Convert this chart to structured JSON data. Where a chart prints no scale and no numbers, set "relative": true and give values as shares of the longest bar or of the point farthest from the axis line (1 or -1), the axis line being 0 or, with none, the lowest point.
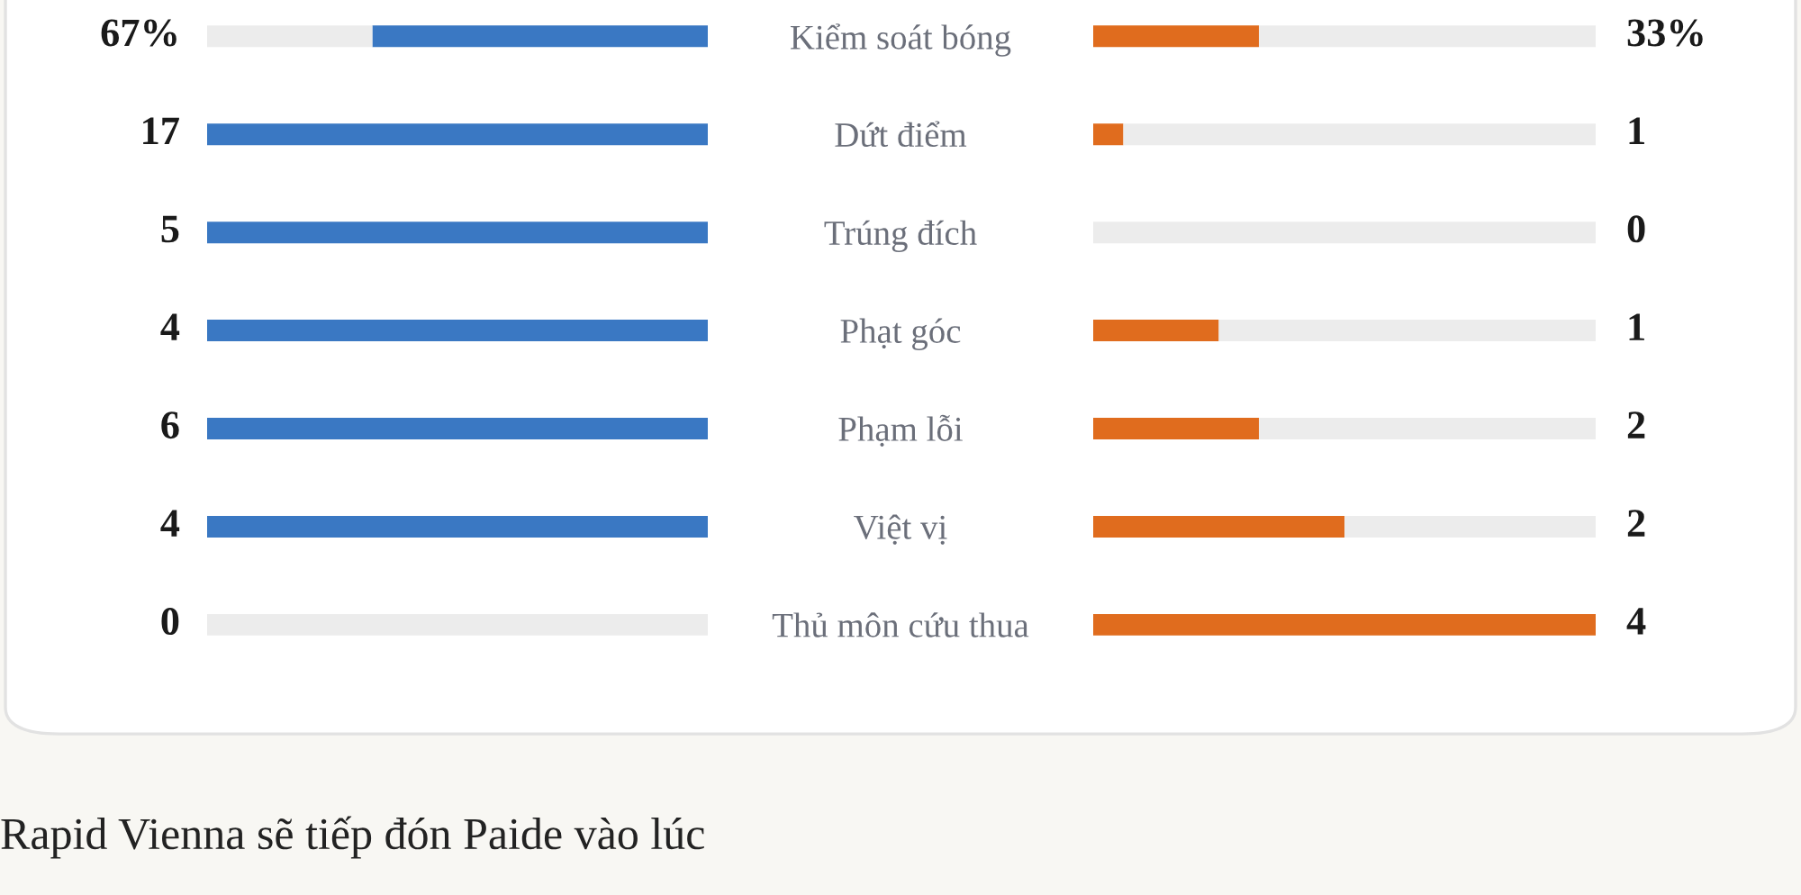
{
  "chart_data": [
    {
      "type": "bar",
      "orientation": "horizontal",
      "stacked": true,
      "relative": true,
      "tick_labels": false,
      "categories": [
        null,
        null,
        null,
        null,
        null,
        null,
        null
      ],
      "series": [
        {
          "color": "#3a78c3",
          "values": [
            -0.67,
            -1,
            -1,
            -1,
            -1,
            -1,
            0
          ]
        },
        {
          "color": "#ececec",
          "values": [
            -0.33,
            0,
            0,
            0,
            0,
            0,
            -1
          ]
        }
      ],
      "annotations": [
        "67%",
        "17",
        "5",
        "4",
        "6",
        "4",
        "0"
      ]
    },
    {
      "type": "bar",
      "orientation": "horizontal",
      "stacked": true,
      "relative": true,
      "tick_labels": "y",
      "categories": [
        "Kiểm soát bóng",
        "Dứt điểm",
        "Trúng đích",
        "Phạt góc",
        "Phạm lỗi",
        "Việt vị",
        "Thủ môn cứu thua"
      ],
      "series": [
        {
          "color": "#e06c1e",
          "values": [
            0.33,
            0.06,
            0,
            0.25,
            0.33,
            0.5,
            1
          ]
        },
        {
          "color": "#ececec",
          "values": [
            0.67,
            0.94,
            1,
            0.75,
            0.67,
            0.5,
            0
          ]
        }
      ],
      "annotations": [
        "33%",
        "1",
        "0",
        "1",
        "2",
        "2",
        "4"
      ]
    },
    {
      "type": "other",
      "annotations": [
        "Rapid Vienna sẽ tiếp đón Paide vào lúc"
      ]
    }
  ]
}
